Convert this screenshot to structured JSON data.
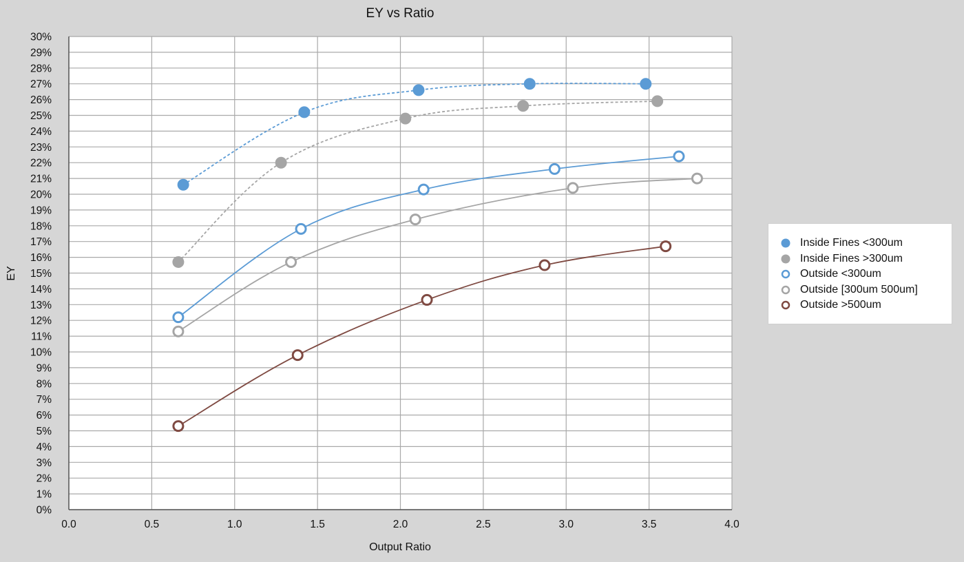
{
  "chart_data": {
    "type": "scatter",
    "title": "EY vs Ratio",
    "xlabel": "Output Ratio",
    "ylabel": "EY",
    "xlim": [
      0,
      4
    ],
    "ylim": [
      0,
      30
    ],
    "x_ticks": [
      "0.0",
      "0.5",
      "1.0",
      "1.5",
      "2.0",
      "2.5",
      "3.0",
      "3.5",
      "4.0"
    ],
    "y_ticks": [
      "0%",
      "1%",
      "2%",
      "3%",
      "4%",
      "5%",
      "6%",
      "7%",
      "8%",
      "9%",
      "10%",
      "11%",
      "12%",
      "13%",
      "14%",
      "15%",
      "16%",
      "17%",
      "18%",
      "19%",
      "20%",
      "21%",
      "22%",
      "23%",
      "24%",
      "25%",
      "26%",
      "27%",
      "28%",
      "29%",
      "30%"
    ],
    "grid": true,
    "legend_position": "right",
    "series": [
      {
        "name": "Inside Fines <300um",
        "color": "#5b9bd5",
        "marker": "filled",
        "line": "dashed",
        "x": [
          0.69,
          1.42,
          2.11,
          2.78,
          3.48
        ],
        "y": [
          20.6,
          25.2,
          26.6,
          27.0,
          27.0
        ]
      },
      {
        "name": "Inside Fines >300um",
        "color": "#a5a5a5",
        "marker": "filled",
        "line": "dashed",
        "x": [
          0.66,
          1.28,
          2.03,
          2.74,
          3.55
        ],
        "y": [
          15.7,
          22.0,
          24.8,
          25.6,
          25.9
        ]
      },
      {
        "name": "Outside <300um",
        "color": "#5b9bd5",
        "marker": "hollow",
        "line": "solid",
        "x": [
          0.66,
          1.4,
          2.14,
          2.93,
          3.68
        ],
        "y": [
          12.2,
          17.8,
          20.3,
          21.6,
          22.4
        ]
      },
      {
        "name": "Outside [300um 500um]",
        "color": "#a5a5a5",
        "marker": "hollow",
        "line": "solid",
        "x": [
          0.66,
          1.34,
          2.09,
          3.04,
          3.79
        ],
        "y": [
          11.3,
          15.7,
          18.4,
          20.4,
          21.0
        ]
      },
      {
        "name": "Outside >500um",
        "color": "#7f4a42",
        "marker": "hollow",
        "line": "solid",
        "x": [
          0.66,
          1.38,
          2.16,
          2.87,
          3.6
        ],
        "y": [
          5.3,
          9.8,
          13.3,
          15.5,
          16.7
        ]
      }
    ]
  }
}
